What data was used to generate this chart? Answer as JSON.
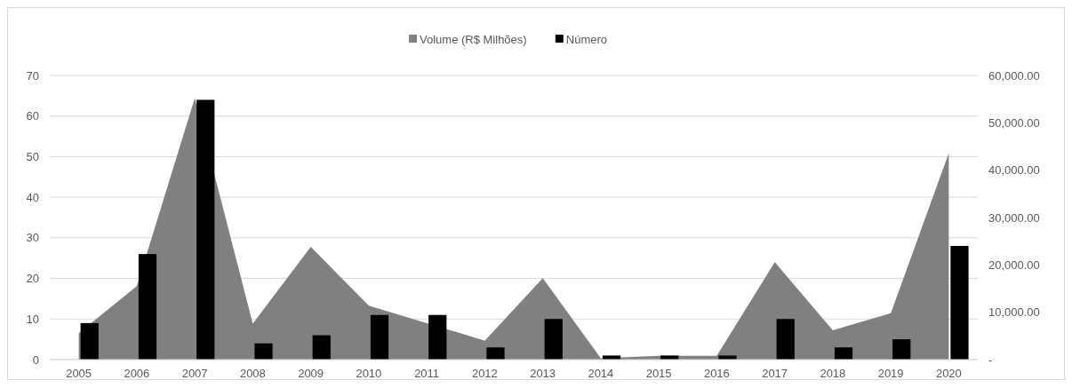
{
  "chart_data": {
    "type": "bar",
    "categories": [
      "2005",
      "2006",
      "2007",
      "2008",
      "2009",
      "2010",
      "2011",
      "2012",
      "2013",
      "2014",
      "2015",
      "2016",
      "2017",
      "2018",
      "2019",
      "2020"
    ],
    "series": [
      {
        "name": "Volume (R$ Milhões)",
        "type": "area",
        "axis": "y2",
        "color": "#808080",
        "values": [
          5600,
          15500,
          55200,
          7600,
          23800,
          11400,
          7700,
          4000,
          17200,
          300,
          800,
          800,
          20600,
          6200,
          9800,
          43600
        ]
      },
      {
        "name": "Número",
        "color": "#000000",
        "values": [
          9,
          26,
          64,
          4,
          6,
          11,
          11,
          3,
          10,
          1,
          1,
          1,
          10,
          3,
          5,
          28
        ]
      }
    ],
    "ylim": [
      0,
      70
    ],
    "yticks": [
      0,
      10,
      20,
      30,
      40,
      50,
      60,
      70
    ],
    "y2lim": [
      0,
      60000
    ],
    "y2ticks": [
      {
        "value": 0,
        "label": "-"
      },
      {
        "value": 10000,
        "label": "10,000.00"
      },
      {
        "value": 20000,
        "label": "20,000.00"
      },
      {
        "value": 30000,
        "label": "30,000.00"
      },
      {
        "value": 40000,
        "label": "40,000.00"
      },
      {
        "value": 50000,
        "label": "50,000.00"
      },
      {
        "value": 60000,
        "label": "60,000.00"
      }
    ],
    "grid": "y",
    "legend": "top"
  }
}
